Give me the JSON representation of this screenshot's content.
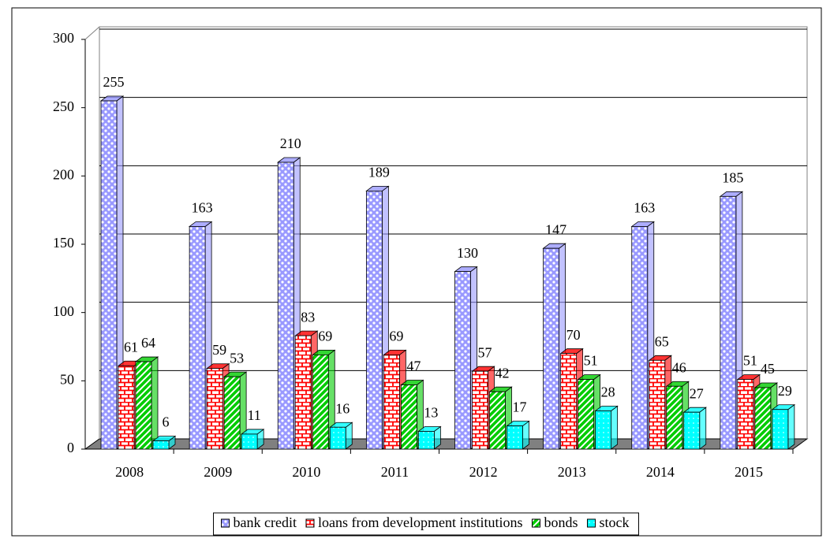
{
  "chart_data": {
    "type": "bar3d",
    "categories": [
      "2008",
      "2009",
      "2010",
      "2011",
      "2012",
      "2013",
      "2014",
      "2015"
    ],
    "series": [
      {
        "name": "bank credit",
        "color": "#9999ff",
        "values": [
          255,
          163,
          210,
          189,
          130,
          147,
          163,
          185
        ]
      },
      {
        "name": "loans from development institutions",
        "color": "#ff0000",
        "values": [
          61,
          59,
          83,
          69,
          57,
          70,
          65,
          51
        ]
      },
      {
        "name": "bonds",
        "color": "#00cc00",
        "values": [
          64,
          53,
          69,
          47,
          42,
          51,
          46,
          45
        ]
      },
      {
        "name": "stock",
        "color": "#00ffff",
        "values": [
          6,
          11,
          16,
          13,
          17,
          28,
          27,
          29
        ]
      }
    ],
    "ylim": [
      0,
      300
    ],
    "yticks": [
      0,
      50,
      100,
      150,
      200,
      250,
      300
    ],
    "grid": true,
    "legend": "bottom"
  }
}
